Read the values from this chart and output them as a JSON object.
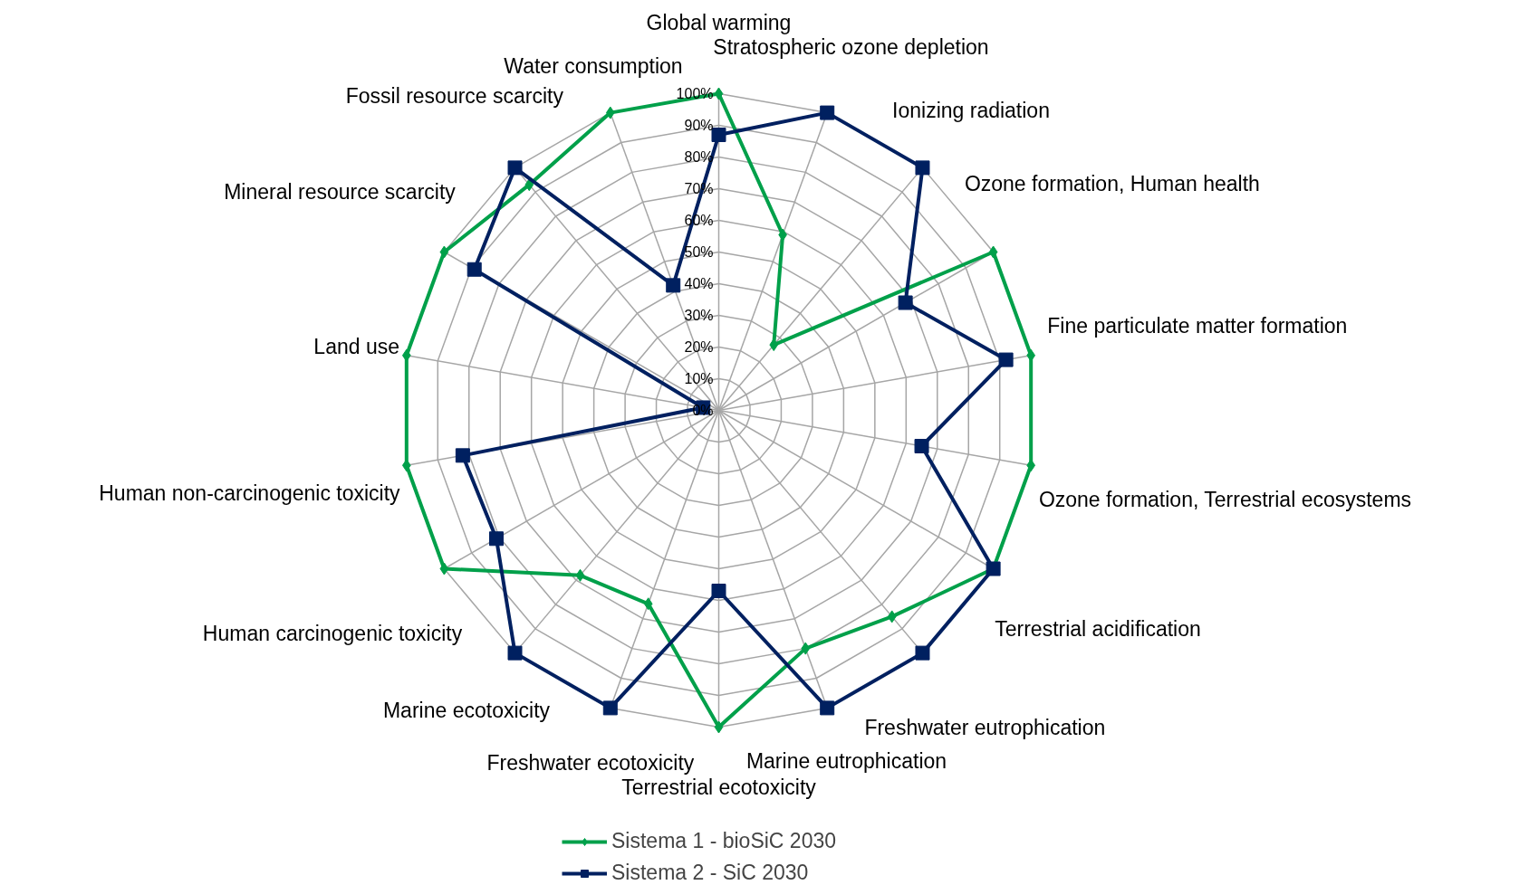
{
  "chart_data": {
    "type": "radar",
    "categories": [
      "Global warming",
      "Stratospheric ozone depletion",
      "Ionizing radiation",
      "Ozone formation, Human health",
      "Fine particulate matter formation",
      "Ozone formation, Terrestrial ecosystems",
      "Terrestrial acidification",
      "Freshwater eutrophication",
      "Marine eutrophication",
      "Terrestrial ecotoxicity",
      "Freshwater ecotoxicity",
      "Marine ecotoxicity",
      "Human carcinogenic toxicity",
      "Human non-carcinogenic toxicity",
      "Land use",
      "Mineral resource scarcity",
      "Fossil resource scarcity",
      "Water consumption"
    ],
    "series": [
      {
        "name": "Sistema 1 - bioSiC 2030",
        "color": "#00a04a",
        "marker": "diamond",
        "values": [
          100,
          59,
          27,
          100,
          100,
          100,
          100,
          85,
          80,
          100,
          65,
          68,
          100,
          100,
          100,
          100,
          93,
          100
        ]
      },
      {
        "name": "Sistema 2 - SiC 2030",
        "color": "#002060",
        "marker": "square",
        "values": [
          87,
          100,
          100,
          68,
          92,
          65,
          100,
          100,
          100,
          57,
          100,
          100,
          81,
          82,
          5,
          89,
          100,
          42
        ]
      }
    ],
    "ylim": [
      0,
      100
    ],
    "yticks": [
      {
        "value": 0,
        "label": "0%"
      },
      {
        "value": 10,
        "label": "10%"
      },
      {
        "value": 20,
        "label": "20%"
      },
      {
        "value": 30,
        "label": "30%"
      },
      {
        "value": 40,
        "label": "40%"
      },
      {
        "value": 50,
        "label": "50%"
      },
      {
        "value": 60,
        "label": "60%"
      },
      {
        "value": 70,
        "label": "70%"
      },
      {
        "value": 80,
        "label": "80%"
      },
      {
        "value": 90,
        "label": "90%"
      },
      {
        "value": 100,
        "label": "100%"
      }
    ],
    "grid": true,
    "legend": "bottom"
  }
}
